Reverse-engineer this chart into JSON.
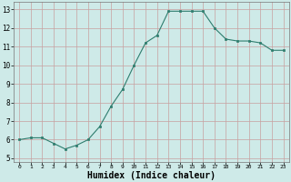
{
  "x": [
    0,
    1,
    2,
    3,
    4,
    5,
    6,
    7,
    8,
    9,
    10,
    11,
    12,
    13,
    14,
    15,
    16,
    17,
    18,
    19,
    20,
    21,
    22,
    23
  ],
  "y": [
    6.0,
    6.1,
    6.1,
    5.8,
    5.5,
    5.7,
    6.0,
    6.7,
    7.8,
    8.7,
    10.0,
    11.2,
    11.6,
    12.9,
    12.9,
    12.9,
    12.9,
    12.0,
    11.4,
    11.3,
    11.3,
    11.2,
    10.8,
    10.8
  ],
  "line_color": "#2e7d6e",
  "marker": "s",
  "marker_size": 1.8,
  "bg_color": "#ceeae8",
  "grid_color": "#c8a0a0",
  "xlabel": "Humidex (Indice chaleur)",
  "xlabel_fontsize": 7,
  "xlabel_fontweight": "bold",
  "ytick_labels": [
    "5",
    "6",
    "7",
    "8",
    "9",
    "10",
    "11",
    "12",
    "13"
  ],
  "ytick_values": [
    5,
    6,
    7,
    8,
    9,
    10,
    11,
    12,
    13
  ],
  "xlim": [
    -0.5,
    23.5
  ],
  "ylim": [
    4.8,
    13.4
  ]
}
